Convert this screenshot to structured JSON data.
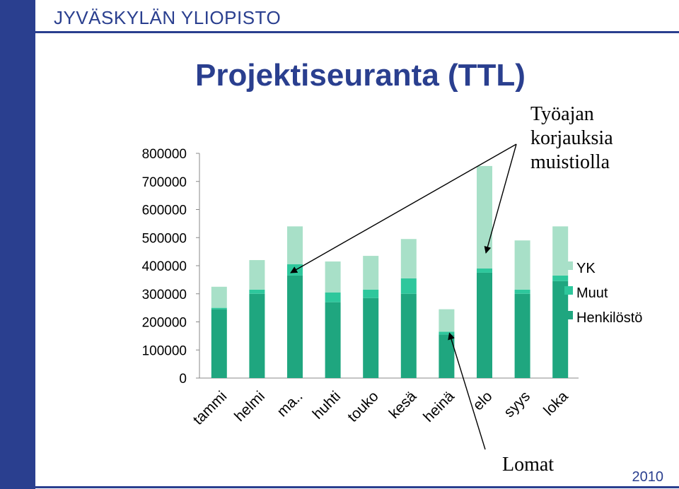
{
  "header": {
    "university": "JYVÄSKYLÄN YLIOPISTO",
    "title": "Projektiseuranta (TTL)",
    "year": "2010"
  },
  "colors": {
    "brand": "#2a3f8f",
    "henkilosto": "#1fa67f",
    "muut": "#2ec79c",
    "yk": "#a8e0c8"
  },
  "chart_data": {
    "type": "bar",
    "stacked": true,
    "categories": [
      "tammi",
      "helmi",
      "ma..",
      "huhti",
      "touko",
      "kesä",
      "heinä",
      "elo",
      "syys",
      "loka"
    ],
    "series": [
      {
        "name": "Henkilöstö",
        "values": [
          245000,
          300000,
          365000,
          270000,
          285000,
          300000,
          155000,
          375000,
          300000,
          345000
        ]
      },
      {
        "name": "Muut",
        "values": [
          5000,
          15000,
          40000,
          35000,
          30000,
          55000,
          10000,
          15000,
          15000,
          20000
        ]
      },
      {
        "name": "YK",
        "values": [
          75000,
          105000,
          135000,
          110000,
          120000,
          140000,
          80000,
          365000,
          175000,
          175000
        ]
      }
    ],
    "ylim": [
      0,
      800000
    ],
    "yticks": [
      "0",
      "100000",
      "200000",
      "300000",
      "400000",
      "500000",
      "600000",
      "700000",
      "800000"
    ],
    "legend_position": "right",
    "annotations": [
      {
        "lines": [
          "Työajan",
          "korjauksia",
          "muistiolla"
        ],
        "targets": [
          "ma..",
          "elo"
        ]
      },
      {
        "lines": [
          "Lomat"
        ],
        "targets": [
          "heinä"
        ]
      }
    ]
  }
}
